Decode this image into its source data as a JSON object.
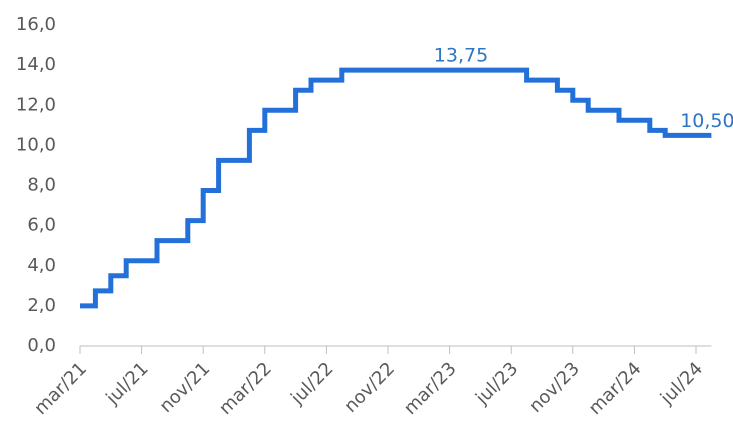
{
  "chart_data": {
    "type": "line",
    "step": "post",
    "categories": [
      "mar/21",
      null,
      null,
      null,
      "jul/21",
      null,
      null,
      null,
      "nov/21",
      null,
      null,
      null,
      "mar/22",
      null,
      null,
      null,
      "jul/22",
      null,
      null,
      null,
      "nov/22",
      null,
      null,
      null,
      "mar/23",
      null,
      null,
      null,
      "jul/23",
      null,
      null,
      null,
      "nov/23",
      null,
      null,
      null,
      "mar/24",
      null,
      null,
      null,
      "jul/24",
      null
    ],
    "series": [
      {
        "color": "#2470d9",
        "values": [
          2.0,
          2.75,
          3.5,
          4.25,
          4.25,
          5.25,
          5.25,
          6.25,
          7.75,
          9.25,
          9.25,
          10.75,
          11.75,
          11.75,
          12.75,
          13.25,
          13.25,
          13.75,
          13.75,
          13.75,
          13.75,
          13.75,
          13.75,
          13.75,
          13.75,
          13.75,
          13.75,
          13.75,
          13.75,
          13.25,
          13.25,
          12.75,
          12.25,
          11.75,
          11.75,
          11.25,
          11.25,
          10.75,
          10.5,
          10.5,
          10.5,
          10.5
        ],
        "value_labels": [
          null,
          null,
          null,
          null,
          null,
          null,
          null,
          null,
          null,
          null,
          null,
          null,
          null,
          null,
          null,
          null,
          null,
          null,
          null,
          null,
          null,
          null,
          null,
          null,
          null,
          "13,75",
          null,
          null,
          null,
          null,
          null,
          null,
          null,
          null,
          null,
          null,
          null,
          null,
          null,
          null,
          null,
          "10,50"
        ]
      }
    ],
    "ylim": [
      0,
      16
    ],
    "yticks": [
      {
        "value": 0,
        "label": "0,0"
      },
      {
        "value": 2,
        "label": "2,0"
      },
      {
        "value": 4,
        "label": "4,0"
      },
      {
        "value": 6,
        "label": "6,0"
      },
      {
        "value": 8,
        "label": "8,0"
      },
      {
        "value": 10,
        "label": "10,0"
      },
      {
        "value": 12,
        "label": "12,0"
      },
      {
        "value": 14,
        "label": "14,0"
      },
      {
        "value": 16,
        "label": "16,0"
      }
    ],
    "grid": false
  }
}
